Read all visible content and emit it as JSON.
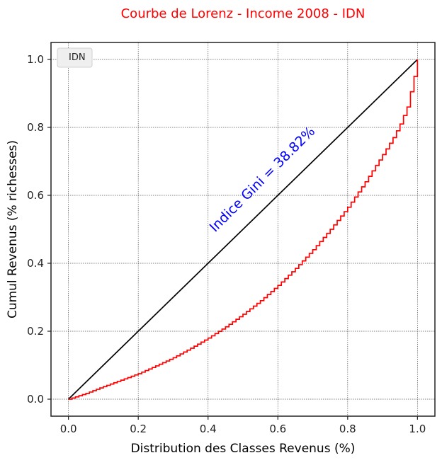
{
  "chart_data": {
    "type": "line",
    "title": "Courbe de Lorenz - Income 2008 - IDN",
    "xlabel": "Distribution des Classes Revenus (%)",
    "ylabel": "Cumul Revenus (% richesses)",
    "xlim": [
      -0.05,
      1.05
    ],
    "ylim": [
      -0.05,
      1.05
    ],
    "xticks": [
      "0.0",
      "0.2",
      "0.4",
      "0.6",
      "0.8",
      "1.0"
    ],
    "yticks": [
      "0.0",
      "0.2",
      "0.4",
      "0.6",
      "0.8",
      "1.0"
    ],
    "grid": true,
    "legend_position": "top-left",
    "legend": [
      "IDN"
    ],
    "annotation": "Indice Gini = 38.82%",
    "colors": {
      "title": "#ff0000",
      "lorenz": "#ff0000",
      "equality": "#000000",
      "annotation": "#0000ff"
    },
    "series": [
      {
        "name": "",
        "step": false,
        "points": [
          [
            0,
            0
          ],
          [
            1,
            1
          ]
        ]
      },
      {
        "name": "IDN",
        "step": true,
        "points": [
          [
            0.0,
            0.0
          ],
          [
            0.05,
            0.017
          ],
          [
            0.1,
            0.037
          ],
          [
            0.15,
            0.056
          ],
          [
            0.2,
            0.075
          ],
          [
            0.25,
            0.098
          ],
          [
            0.3,
            0.122
          ],
          [
            0.35,
            0.15
          ],
          [
            0.4,
            0.18
          ],
          [
            0.45,
            0.213
          ],
          [
            0.5,
            0.25
          ],
          [
            0.55,
            0.29
          ],
          [
            0.6,
            0.335
          ],
          [
            0.65,
            0.385
          ],
          [
            0.7,
            0.44
          ],
          [
            0.75,
            0.5
          ],
          [
            0.8,
            0.565
          ],
          [
            0.85,
            0.64
          ],
          [
            0.9,
            0.72
          ],
          [
            0.93,
            0.77
          ],
          [
            0.95,
            0.81
          ],
          [
            0.97,
            0.86
          ],
          [
            0.99,
            0.95
          ],
          [
            1.0,
            1.0
          ]
        ]
      }
    ]
  }
}
